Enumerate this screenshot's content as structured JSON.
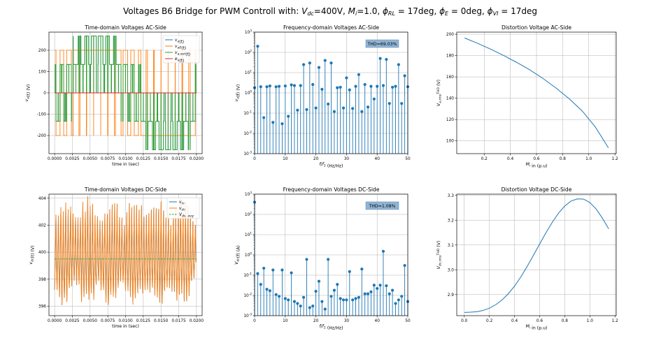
{
  "figure": {
    "title_pre": "Voltages B6 Bridge for PWM Controll with: ",
    "title_vdc": "V",
    "title_vdc_sub": "dc",
    "title_vdc_val": "=400V, ",
    "title_mi": "M",
    "title_mi_sub": "i",
    "title_mi_val": "=1.0, ",
    "title_phirl": "ϕ",
    "title_phirl_sub": "RL",
    "title_phirl_val": " = 17deg, ",
    "title_phie": "ϕ",
    "title_phie_sub": "E",
    "title_phie_val": " = 0deg, ",
    "title_phivi": "ϕ",
    "title_phivi_sub": "VI",
    "title_phivi_val": " = 17deg"
  },
  "colors": {
    "blue": "#1f77b4",
    "orange": "#ff7f0e",
    "green": "#2ca02c",
    "red": "#d62728",
    "thdbox": "#8fb4d4"
  },
  "chart_data": [
    {
      "id": "ac_time",
      "type": "line",
      "title": "Time-domain Voltages AC-Side",
      "xlabel": "time in (sec)",
      "ylabel": "v_a(t) (V)",
      "xlim": [
        -0.0008,
        0.0208
      ],
      "ylim": [
        -285,
        285
      ],
      "xticks": [
        "0.0000",
        "0.0025",
        "0.0050",
        "0.0075",
        "0.0100",
        "0.0125",
        "0.0150",
        "0.0175",
        "0.0200"
      ],
      "xtick_values": [
        0,
        0.0025,
        0.005,
        0.0075,
        0.01,
        0.0125,
        0.015,
        0.0175,
        0.02
      ],
      "yticks": [
        "-200",
        "-100",
        "0",
        "100",
        "200"
      ],
      "ytick_values": [
        -200,
        -100,
        0,
        100,
        200
      ],
      "legend": [
        "v_a(t)",
        "v_a0(t)",
        "v_a,out(t)",
        "e_a(t)"
      ],
      "legend_position": "top-right",
      "grid": true,
      "series": [
        {
          "name": "v_a(t)",
          "kind": "six-step-pwm",
          "levels": [
            -267,
            -133,
            0,
            133,
            267
          ]
        },
        {
          "name": "v_a0(t)",
          "kind": "pwm-two-level",
          "levels": [
            -200,
            200
          ]
        },
        {
          "name": "v_a,out(t)",
          "kind": "six-step-pwm",
          "levels": [
            -267,
            -133,
            0,
            133,
            267
          ]
        },
        {
          "name": "e_a(t)",
          "kind": "constant",
          "value": 0
        }
      ]
    },
    {
      "id": "ac_freq",
      "type": "stem",
      "title": "Frequency-domain Voltages AC-Side",
      "xlabel": "f/f_1 (Hz/Hz)",
      "ylabel": "v_a(f) (V)",
      "yscale": "log",
      "xlim": [
        0,
        50
      ],
      "ylim_exp": [
        -3,
        3
      ],
      "xticks": [
        "0",
        "10",
        "20",
        "30",
        "40",
        "50"
      ],
      "yticks": [
        "10^-3",
        "10^-2",
        "10^-1",
        "10^0",
        "10^1",
        "10^2",
        "10^3"
      ],
      "annotation": "THD=69.03%",
      "grid": true,
      "harmonics": [
        0,
        1,
        2,
        3,
        4,
        5,
        6,
        7,
        8,
        9,
        10,
        11,
        12,
        13,
        14,
        15,
        16,
        17,
        18,
        19,
        20,
        21,
        22,
        23,
        24,
        25,
        26,
        27,
        28,
        29,
        30,
        31,
        32,
        33,
        34,
        35,
        36,
        37,
        38,
        39,
        40,
        41,
        42,
        43,
        44,
        45,
        46,
        47,
        48,
        49,
        50
      ],
      "values": [
        1.8,
        200,
        2.0,
        0.06,
        2.0,
        2.2,
        0.035,
        2.0,
        2.1,
        0.03,
        2.2,
        0.07,
        2.5,
        2.3,
        0.14,
        2.3,
        25,
        0.15,
        30,
        2.6,
        0.18,
        18,
        1.5,
        40,
        0.28,
        30,
        0.12,
        1.8,
        1.9,
        0.18,
        5.5,
        1.4,
        0.17,
        2.1,
        8,
        0.12,
        2.6,
        0.2,
        2.1,
        0.5,
        2.1,
        50,
        2.3,
        45,
        0.3,
        1.9,
        2.1,
        25,
        0.3,
        7,
        2.0
      ]
    },
    {
      "id": "ac_dist",
      "type": "line",
      "title": "Distortion Voltage AC-Side",
      "xlabel": "M_i in (p.u)",
      "ylabel": "V_a,rms^THD (V)",
      "xlim": [
        -0.01,
        1.21
      ],
      "ylim": [
        88,
        202
      ],
      "xticks": [
        "0.2",
        "0.4",
        "0.6",
        "0.8",
        "1.0",
        "1.2"
      ],
      "xtick_values": [
        0.2,
        0.4,
        0.6,
        0.8,
        1.0,
        1.2
      ],
      "yticks": [
        "100",
        "120",
        "140",
        "160",
        "180",
        "200"
      ],
      "ytick_values": [
        100,
        120,
        140,
        160,
        180,
        200
      ],
      "grid": true,
      "x": [
        0.05,
        0.15,
        0.25,
        0.35,
        0.45,
        0.55,
        0.65,
        0.75,
        0.85,
        0.95,
        1.05,
        1.15
      ],
      "y": [
        196.5,
        191.5,
        186,
        180,
        173.5,
        166.5,
        158.5,
        149.5,
        139.5,
        128,
        113,
        93.5
      ]
    },
    {
      "id": "dc_time",
      "type": "line",
      "title": "Time-domain Voltages DC-Side",
      "xlabel": "time in (sec)",
      "ylabel": "v_dc(t) (V)",
      "xlim": [
        -0.0008,
        0.0208
      ],
      "ylim": [
        395.3,
        404.3
      ],
      "xticks": [
        "0.0000",
        "0.0025",
        "0.0050",
        "0.0075",
        "0.0100",
        "0.0125",
        "0.0150",
        "0.0175",
        "0.0200"
      ],
      "xtick_values": [
        0,
        0.0025,
        0.005,
        0.0075,
        0.01,
        0.0125,
        0.015,
        0.0175,
        0.02
      ],
      "yticks": [
        "396",
        "398",
        "400",
        "402",
        "404"
      ],
      "ytick_values": [
        396,
        398,
        400,
        402,
        404
      ],
      "legend": [
        "v_in",
        "v_dc",
        "V_dc,avg"
      ],
      "legend_position": "top-right",
      "grid": true,
      "series": [
        {
          "name": "v_in",
          "kind": "ripple",
          "center": 400
        },
        {
          "name": "v_dc",
          "kind": "ripple",
          "center": 400,
          "range": [
            395.5,
            404
          ]
        },
        {
          "name": "V_dc,avg",
          "kind": "constant",
          "value": 399.5
        }
      ]
    },
    {
      "id": "dc_freq",
      "type": "stem",
      "title": "Frequency-domain Voltages DC-Side",
      "xlabel": "f/f_1 (Hz/Hz)",
      "ylabel": "V_dc(f) (A)",
      "yscale": "log",
      "xlim": [
        0,
        50
      ],
      "ylim_exp": [
        -3,
        3
      ],
      "xticks": [
        "0",
        "10",
        "20",
        "30",
        "40",
        "50"
      ],
      "yticks": [
        "10^-3",
        "10^-2",
        "10^-1",
        "10^0",
        "10^1",
        "10^2",
        "10^3"
      ],
      "annotation": "THD=1.08%",
      "grid": true,
      "harmonics": [
        0,
        1,
        2,
        3,
        4,
        5,
        6,
        7,
        8,
        9,
        10,
        11,
        12,
        13,
        14,
        15,
        16,
        17,
        18,
        19,
        20,
        21,
        22,
        23,
        24,
        25,
        26,
        27,
        28,
        29,
        30,
        31,
        32,
        33,
        34,
        35,
        36,
        37,
        38,
        39,
        40,
        41,
        42,
        43,
        44,
        45,
        46,
        47,
        48,
        49,
        50
      ],
      "values": [
        400,
        0.12,
        0.035,
        0.22,
        0.02,
        0.017,
        0.18,
        0.011,
        0.009,
        0.18,
        0.007,
        0.006,
        0.13,
        0.005,
        0.004,
        0.003,
        0.008,
        0.6,
        0.0025,
        0.003,
        0.016,
        0.05,
        0.005,
        0.0021,
        0.6,
        0.009,
        0.018,
        0.035,
        0.007,
        0.006,
        0.006,
        0.15,
        0.006,
        0.007,
        0.008,
        0.2,
        0.012,
        0.012,
        0.015,
        0.032,
        0.022,
        0.032,
        1.5,
        0.03,
        0.012,
        0.018,
        0.004,
        0.006,
        0.009,
        0.3,
        0.005
      ]
    },
    {
      "id": "dc_dist",
      "type": "line",
      "title": "Distortion Voltage DC-Side",
      "xlabel": "M_i in (p.u)",
      "ylabel": "V_dc,rms^THD (V)",
      "xlim": [
        -0.06,
        1.21
      ],
      "ylim": [
        2.815,
        3.305
      ],
      "xticks": [
        "0.0",
        "0.2",
        "0.4",
        "0.6",
        "0.8",
        "1.0",
        "1.2"
      ],
      "xtick_values": [
        0,
        0.2,
        0.4,
        0.6,
        0.8,
        1.0,
        1.2
      ],
      "yticks": [
        "2.9",
        "3.0",
        "3.1",
        "3.2",
        "3.3"
      ],
      "ytick_values": [
        2.9,
        3.0,
        3.1,
        3.2,
        3.3
      ],
      "grid": true,
      "x": [
        0.0,
        0.05,
        0.1,
        0.15,
        0.2,
        0.25,
        0.3,
        0.35,
        0.4,
        0.45,
        0.5,
        0.55,
        0.6,
        0.65,
        0.7,
        0.75,
        0.8,
        0.85,
        0.9,
        0.95,
        1.0,
        1.05,
        1.1,
        1.15
      ],
      "y": [
        2.828,
        2.829,
        2.831,
        2.836,
        2.845,
        2.859,
        2.878,
        2.903,
        2.934,
        2.971,
        3.013,
        3.058,
        3.104,
        3.149,
        3.191,
        3.228,
        3.257,
        3.277,
        3.286,
        3.285,
        3.271,
        3.245,
        3.208,
        3.165
      ]
    }
  ]
}
